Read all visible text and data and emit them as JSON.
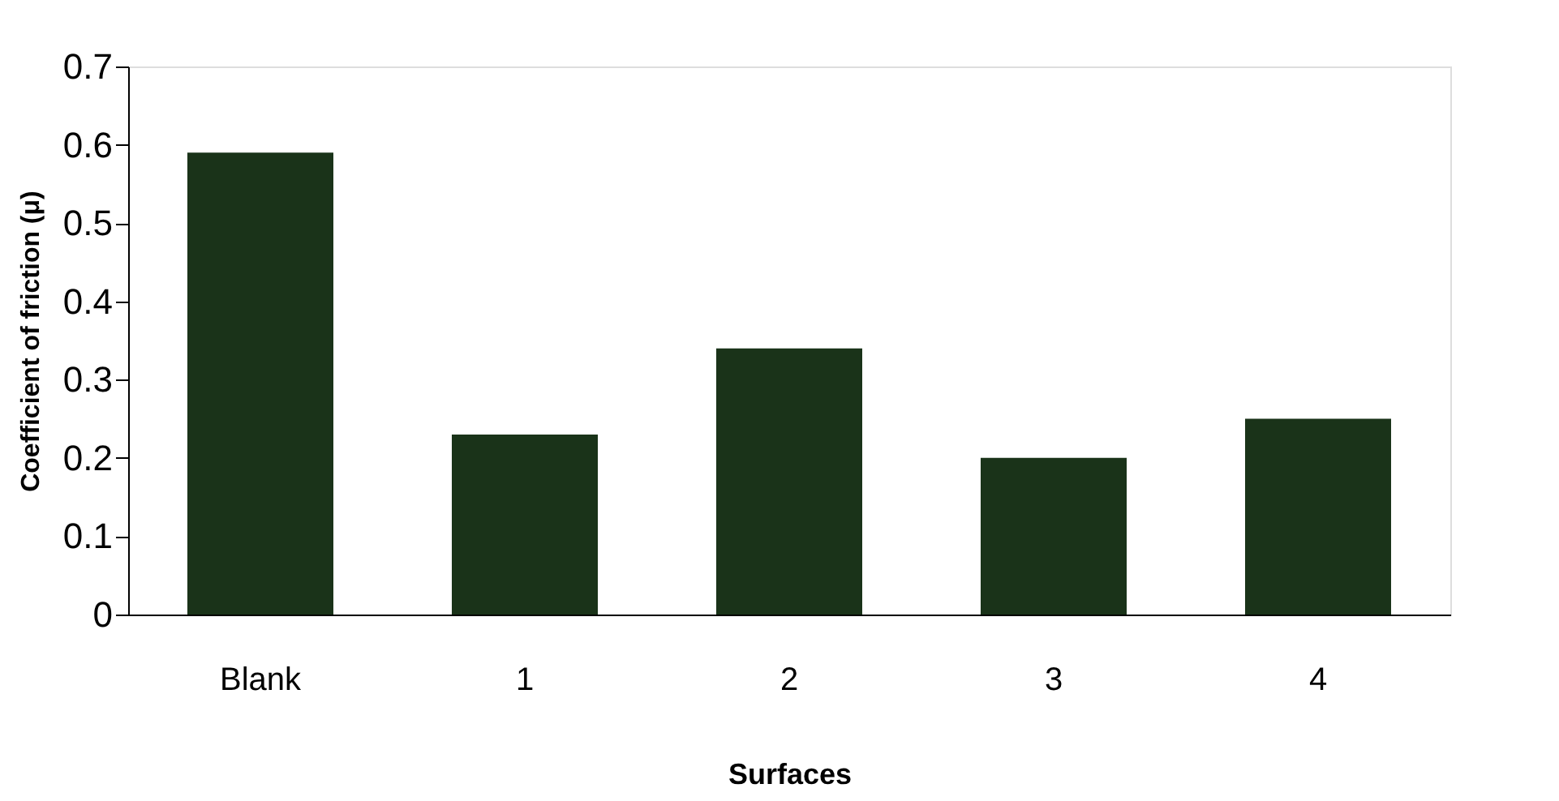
{
  "chart_data": {
    "type": "bar",
    "categories": [
      "Blank",
      "1",
      "2",
      "3",
      "4"
    ],
    "values": [
      0.59,
      0.23,
      0.34,
      0.2,
      0.25
    ],
    "color": "#1a3319",
    "xlabel": "Surfaces",
    "ylabel": "Coefficient of friction (μ)",
    "ylim": [
      0,
      0.7
    ],
    "yticks": [
      0,
      0.1,
      0.2,
      0.3,
      0.4,
      0.5,
      0.6,
      0.7
    ],
    "grid": false
  }
}
